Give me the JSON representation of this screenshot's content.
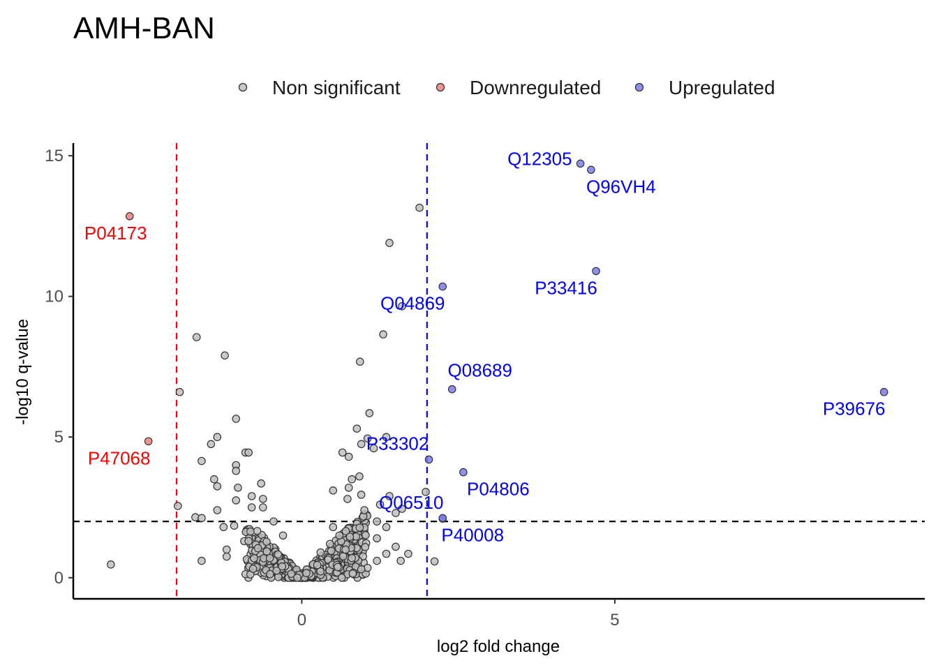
{
  "chart_data": {
    "type": "scatter",
    "title": "AMH-BAN",
    "xlabel": "log2 fold change",
    "ylabel": "-log10 q-value",
    "xlim": [
      -3.65,
      9.95
    ],
    "ylim": [
      -0.75,
      15.45
    ],
    "x_ticks": [
      0,
      5
    ],
    "y_ticks": [
      0,
      5,
      10,
      15
    ],
    "grid": false,
    "legend_position": "top",
    "thresholds": {
      "fc_low": -2,
      "fc_high": 2,
      "q_line": 2,
      "fc_low_color": "#ff0000",
      "fc_high_color": "#0000ff",
      "q_color": "#000000"
    },
    "colors": {
      "nonsig": "#bfbfbf",
      "down": "#f08080",
      "up": "#7b7bea",
      "down_label": "#ff0000",
      "up_label": "#0000ff"
    },
    "legend": [
      {
        "key": "nonsig",
        "label": "Non significant"
      },
      {
        "key": "down",
        "label": "Downregulated"
      },
      {
        "key": "up",
        "label": "Upregulated"
      }
    ],
    "series": [
      {
        "key": "down",
        "points": [
          {
            "x": -2.75,
            "y": 12.85,
            "label": "P04173",
            "label_pos": "below"
          },
          {
            "x": -2.45,
            "y": 4.85,
            "label": "P47068",
            "label_pos": "below"
          }
        ]
      },
      {
        "key": "up",
        "points": [
          {
            "x": 4.45,
            "y": 14.72,
            "label": "Q12305",
            "label_pos": "left"
          },
          {
            "x": 4.62,
            "y": 14.5,
            "label": "Q96VH4",
            "label_pos": "below"
          },
          {
            "x": 4.7,
            "y": 10.9,
            "label": "P33416",
            "label_pos": "below-left"
          },
          {
            "x": 2.25,
            "y": 10.35,
            "label": "Q04869",
            "label_pos": "below-left"
          },
          {
            "x": 2.4,
            "y": 6.7,
            "label": "Q08689",
            "label_pos": "above"
          },
          {
            "x": 9.3,
            "y": 6.6,
            "label": "P39676",
            "label_pos": "below-left"
          },
          {
            "x": 2.03,
            "y": 4.2,
            "label": "P33302",
            "label_pos": "above-left"
          },
          {
            "x": 2.58,
            "y": 3.75,
            "label": "P04806",
            "label_pos": "below"
          },
          {
            "x": 2.25,
            "y": 2.1,
            "label": "Q06510",
            "label_pos": "above-left"
          },
          {
            "x": 2.25,
            "y": 2.12,
            "label": "P40008",
            "label_pos": "below"
          }
        ]
      },
      {
        "key": "nonsig",
        "points": [
          {
            "x": 1.88,
            "y": 13.15
          },
          {
            "x": 1.4,
            "y": 11.9
          },
          {
            "x": 1.6,
            "y": 9.65
          },
          {
            "x": 1.3,
            "y": 8.65
          },
          {
            "x": 0.93,
            "y": 7.68
          },
          {
            "x": 1.08,
            "y": 5.85
          },
          {
            "x": 0.88,
            "y": 5.3
          },
          {
            "x": 1.05,
            "y": 4.95
          },
          {
            "x": 1.35,
            "y": 5.0
          },
          {
            "x": 0.65,
            "y": 4.45
          },
          {
            "x": 0.95,
            "y": 4.75
          },
          {
            "x": 1.15,
            "y": 4.6
          },
          {
            "x": 0.75,
            "y": 4.3
          },
          {
            "x": 0.92,
            "y": 3.6
          },
          {
            "x": 0.8,
            "y": 3.5
          },
          {
            "x": 0.75,
            "y": 3.2
          },
          {
            "x": 0.5,
            "y": 3.1
          },
          {
            "x": 0.95,
            "y": 2.95
          },
          {
            "x": 1.4,
            "y": 2.9
          },
          {
            "x": 1.25,
            "y": 2.6
          },
          {
            "x": 1.5,
            "y": 2.3
          },
          {
            "x": 1.98,
            "y": 3.05
          },
          {
            "x": 0.73,
            "y": 2.8
          },
          {
            "x": 1.0,
            "y": 2.4
          },
          {
            "x": 1.6,
            "y": 2.45
          },
          {
            "x": 1.2,
            "y": 2.0
          },
          {
            "x": 1.35,
            "y": 1.8
          },
          {
            "x": 1.2,
            "y": 1.4
          },
          {
            "x": 1.5,
            "y": 1.1
          },
          {
            "x": 1.35,
            "y": 0.85
          },
          {
            "x": 1.7,
            "y": 0.85
          },
          {
            "x": 1.2,
            "y": 0.6
          },
          {
            "x": 1.05,
            "y": 0.35
          },
          {
            "x": 0.95,
            "y": 0.3
          },
          {
            "x": 1.58,
            "y": 0.6
          },
          {
            "x": 2.12,
            "y": 0.58
          },
          {
            "x": -1.68,
            "y": 8.55
          },
          {
            "x": -1.23,
            "y": 7.9
          },
          {
            "x": -1.95,
            "y": 6.6
          },
          {
            "x": -1.05,
            "y": 5.65
          },
          {
            "x": -1.35,
            "y": 5.0
          },
          {
            "x": -1.45,
            "y": 4.75
          },
          {
            "x": -0.9,
            "y": 4.45
          },
          {
            "x": -0.85,
            "y": 4.45
          },
          {
            "x": -1.6,
            "y": 4.15
          },
          {
            "x": -1.05,
            "y": 4.0
          },
          {
            "x": -1.05,
            "y": 3.8
          },
          {
            "x": -1.4,
            "y": 3.5
          },
          {
            "x": -1.35,
            "y": 3.25
          },
          {
            "x": -1.02,
            "y": 3.2
          },
          {
            "x": -0.65,
            "y": 3.35
          },
          {
            "x": -0.8,
            "y": 2.9
          },
          {
            "x": -0.62,
            "y": 2.8
          },
          {
            "x": -1.05,
            "y": 2.75
          },
          {
            "x": -1.35,
            "y": 2.4
          },
          {
            "x": -0.8,
            "y": 2.5
          },
          {
            "x": -0.62,
            "y": 2.5
          },
          {
            "x": -1.98,
            "y": 2.55
          },
          {
            "x": -1.7,
            "y": 2.15
          },
          {
            "x": -1.6,
            "y": 2.12
          },
          {
            "x": -1.25,
            "y": 1.8
          },
          {
            "x": -1.08,
            "y": 1.85
          },
          {
            "x": -0.45,
            "y": 2.0
          },
          {
            "x": -0.92,
            "y": 1.3
          },
          {
            "x": -0.85,
            "y": 1.3
          },
          {
            "x": -1.2,
            "y": 1.0
          },
          {
            "x": -1.2,
            "y": 0.75
          },
          {
            "x": -1.6,
            "y": 0.6
          },
          {
            "x": -3.05,
            "y": 0.47
          },
          {
            "x": -0.7,
            "y": 1.05
          },
          {
            "x": -0.3,
            "y": 1.5
          },
          {
            "x": 0.6,
            "y": 1.5
          },
          {
            "x": 0.5,
            "y": 1.8
          },
          {
            "x": 0.45,
            "y": 1.2
          },
          {
            "x": 0.3,
            "y": 0.9
          },
          {
            "x": 0.7,
            "y": 1.0
          },
          {
            "x": 0.8,
            "y": 0.7
          }
        ],
        "cloud": true
      }
    ]
  }
}
